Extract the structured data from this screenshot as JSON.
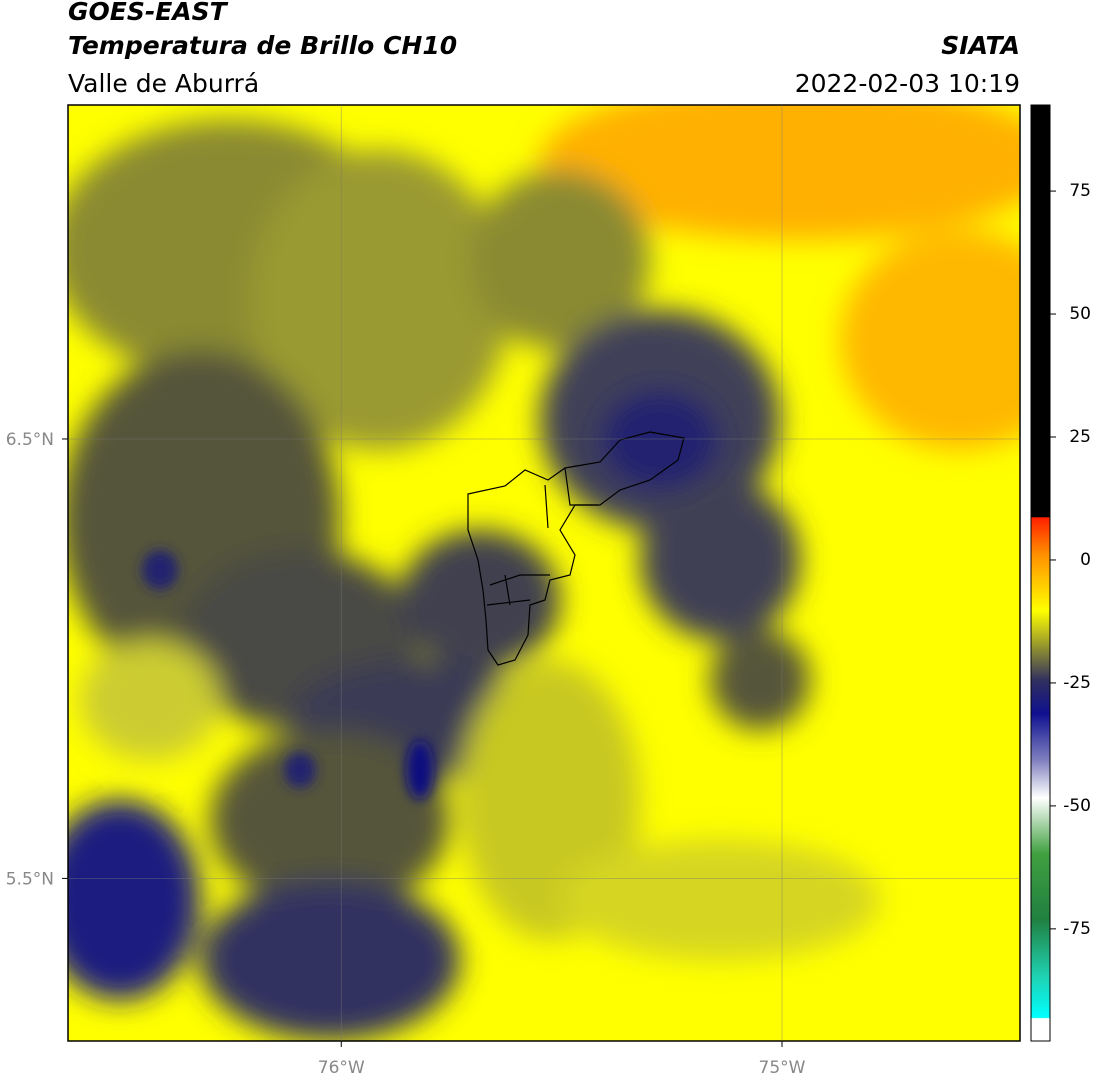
{
  "header": {
    "title": "GOES-EAST",
    "subtitle": "Temperatura de Brillo CH10",
    "region": "Valle de Aburrá",
    "source": "SIATA",
    "datetime": "2022-02-03 10:19"
  },
  "map": {
    "lon_range": [
      -76.62,
      -74.46
    ],
    "lat_range": [
      5.13,
      7.26
    ],
    "lon_ticks": [
      {
        "value": -76,
        "label": "76°W"
      },
      {
        "value": -75,
        "label": "75°W"
      }
    ],
    "lat_ticks": [
      {
        "value": 6.5,
        "label": "6.5°N"
      },
      {
        "value": 5.5,
        "label": "5.5°N"
      }
    ]
  },
  "colorbar": {
    "range": [
      -97.8,
      92.5
    ],
    "ticks": [
      75,
      50,
      25,
      0,
      -25,
      -50,
      -75
    ]
  }
}
